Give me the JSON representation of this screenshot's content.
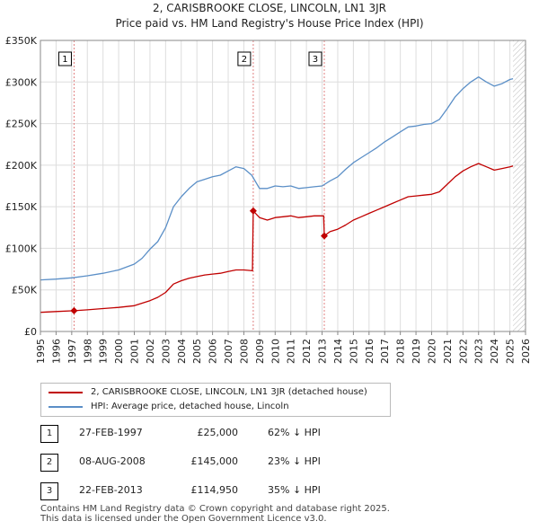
{
  "header": {
    "title_line1": "2, CARISBROOKE CLOSE, LINCOLN, LN1 3JR",
    "title_line2": "Price paid vs. HM Land Registry's House Price Index (HPI)"
  },
  "colors": {
    "price_paid": "#c00000",
    "hpi": "#5b8fc7",
    "grid": "#dddddd",
    "marker_line": "#e08080",
    "hatch": "#bbbbbb"
  },
  "chart_data": {
    "type": "line",
    "title": "Price paid vs. HM Land Registry's House Price Index (HPI)",
    "xlabel": "",
    "ylabel": "",
    "xlim": [
      1995,
      2026
    ],
    "ylim": [
      0,
      350000
    ],
    "y_ticks": [
      {
        "value": 0,
        "label": "£0"
      },
      {
        "value": 50000,
        "label": "£50K"
      },
      {
        "value": 100000,
        "label": "£100K"
      },
      {
        "value": 150000,
        "label": "£150K"
      },
      {
        "value": 200000,
        "label": "£200K"
      },
      {
        "value": 250000,
        "label": "£250K"
      },
      {
        "value": 300000,
        "label": "£300K"
      },
      {
        "value": 350000,
        "label": "£350K"
      }
    ],
    "x_ticks": [
      "1995",
      "1996",
      "1997",
      "1998",
      "1999",
      "2000",
      "2001",
      "2002",
      "2003",
      "2004",
      "2005",
      "2006",
      "2007",
      "2008",
      "2009",
      "2010",
      "2011",
      "2012",
      "2013",
      "2014",
      "2015",
      "2016",
      "2017",
      "2018",
      "2019",
      "2020",
      "2021",
      "2022",
      "2023",
      "2024",
      "2025",
      "2026"
    ],
    "forecast_start": 2025.2,
    "series": [
      {
        "name": "HPI",
        "points": [
          [
            1995.0,
            62000
          ],
          [
            1996.0,
            63000
          ],
          [
            1997.0,
            64500
          ],
          [
            1998.0,
            67000
          ],
          [
            1999.0,
            70000
          ],
          [
            2000.0,
            74000
          ],
          [
            2001.0,
            81000
          ],
          [
            2001.5,
            88000
          ],
          [
            2002.0,
            99000
          ],
          [
            2002.5,
            108000
          ],
          [
            2003.0,
            125000
          ],
          [
            2003.5,
            150000
          ],
          [
            2004.0,
            162000
          ],
          [
            2004.5,
            172000
          ],
          [
            2005.0,
            180000
          ],
          [
            2005.5,
            183000
          ],
          [
            2006.0,
            186000
          ],
          [
            2006.5,
            188000
          ],
          [
            2007.0,
            193000
          ],
          [
            2007.5,
            198000
          ],
          [
            2008.0,
            196000
          ],
          [
            2008.5,
            188000
          ],
          [
            2009.0,
            172000
          ],
          [
            2009.5,
            172000
          ],
          [
            2010.0,
            175000
          ],
          [
            2010.5,
            174000
          ],
          [
            2011.0,
            175000
          ],
          [
            2011.5,
            172000
          ],
          [
            2012.0,
            173000
          ],
          [
            2012.5,
            174000
          ],
          [
            2013.0,
            175000
          ],
          [
            2013.5,
            181000
          ],
          [
            2014.0,
            186000
          ],
          [
            2014.5,
            195000
          ],
          [
            2015.0,
            203000
          ],
          [
            2015.5,
            209000
          ],
          [
            2016.0,
            215000
          ],
          [
            2016.5,
            221000
          ],
          [
            2017.0,
            228000
          ],
          [
            2017.5,
            234000
          ],
          [
            2018.0,
            240000
          ],
          [
            2018.5,
            246000
          ],
          [
            2019.0,
            247000
          ],
          [
            2019.5,
            249000
          ],
          [
            2020.0,
            250000
          ],
          [
            2020.5,
            255000
          ],
          [
            2021.0,
            268000
          ],
          [
            2021.5,
            282000
          ],
          [
            2022.0,
            292000
          ],
          [
            2022.5,
            300000
          ],
          [
            2023.0,
            306000
          ],
          [
            2023.5,
            300000
          ],
          [
            2024.0,
            295000
          ],
          [
            2024.5,
            298000
          ],
          [
            2025.0,
            303000
          ],
          [
            2025.2,
            304000
          ]
        ]
      },
      {
        "name": "Price paid",
        "points": [
          [
            1995.0,
            23000
          ],
          [
            1996.0,
            24000
          ],
          [
            1997.15,
            25000
          ],
          [
            1998.0,
            26000
          ],
          [
            1999.0,
            27500
          ],
          [
            2000.0,
            29000
          ],
          [
            2001.0,
            31000
          ],
          [
            2001.5,
            34000
          ],
          [
            2002.0,
            37000
          ],
          [
            2002.5,
            41000
          ],
          [
            2003.0,
            47000
          ],
          [
            2003.5,
            57000
          ],
          [
            2004.0,
            61000
          ],
          [
            2004.5,
            64000
          ],
          [
            2005.0,
            66000
          ],
          [
            2005.5,
            68000
          ],
          [
            2006.0,
            69000
          ],
          [
            2006.5,
            70000
          ],
          [
            2007.0,
            72000
          ],
          [
            2007.5,
            74000
          ],
          [
            2008.0,
            74000
          ],
          [
            2008.55,
            73000
          ],
          [
            2008.6,
            145000
          ],
          [
            2009.0,
            137000
          ],
          [
            2009.5,
            134000
          ],
          [
            2010.0,
            137000
          ],
          [
            2010.5,
            138000
          ],
          [
            2011.0,
            139000
          ],
          [
            2011.5,
            137000
          ],
          [
            2012.0,
            138000
          ],
          [
            2012.5,
            139000
          ],
          [
            2013.1,
            139000
          ],
          [
            2013.14,
            114950
          ],
          [
            2013.5,
            120000
          ],
          [
            2014.0,
            123000
          ],
          [
            2014.5,
            128000
          ],
          [
            2015.0,
            134000
          ],
          [
            2015.5,
            138000
          ],
          [
            2016.0,
            142000
          ],
          [
            2016.5,
            146000
          ],
          [
            2017.0,
            150000
          ],
          [
            2017.5,
            154000
          ],
          [
            2018.0,
            158000
          ],
          [
            2018.5,
            162000
          ],
          [
            2019.0,
            163000
          ],
          [
            2019.5,
            164000
          ],
          [
            2020.0,
            165000
          ],
          [
            2020.5,
            168000
          ],
          [
            2021.0,
            177000
          ],
          [
            2021.5,
            186000
          ],
          [
            2022.0,
            193000
          ],
          [
            2022.5,
            198000
          ],
          [
            2023.0,
            202000
          ],
          [
            2023.5,
            198000
          ],
          [
            2024.0,
            194000
          ],
          [
            2024.5,
            196000
          ],
          [
            2025.0,
            198000
          ],
          [
            2025.2,
            199000
          ]
        ]
      }
    ],
    "markers": [
      {
        "label": "1",
        "x": 1997.15,
        "y": 25000
      },
      {
        "label": "2",
        "x": 2008.6,
        "y": 145000
      },
      {
        "label": "3",
        "x": 2013.14,
        "y": 114950
      }
    ]
  },
  "legend": {
    "items": [
      {
        "label": "2, CARISBROOKE CLOSE, LINCOLN, LN1 3JR (detached house)",
        "color": "#c00000"
      },
      {
        "label": "HPI: Average price, detached house, Lincoln",
        "color": "#5b8fc7"
      }
    ]
  },
  "transactions": [
    {
      "num": "1",
      "date": "27-FEB-1997",
      "price": "£25,000",
      "hpi": "62% ↓ HPI"
    },
    {
      "num": "2",
      "date": "08-AUG-2008",
      "price": "£145,000",
      "hpi": "23% ↓ HPI"
    },
    {
      "num": "3",
      "date": "22-FEB-2013",
      "price": "£114,950",
      "hpi": "35% ↓ HPI"
    }
  ],
  "footer": {
    "line1": "Contains HM Land Registry data © Crown copyright and database right 2025.",
    "line2": "This data is licensed under the Open Government Licence v3.0."
  }
}
